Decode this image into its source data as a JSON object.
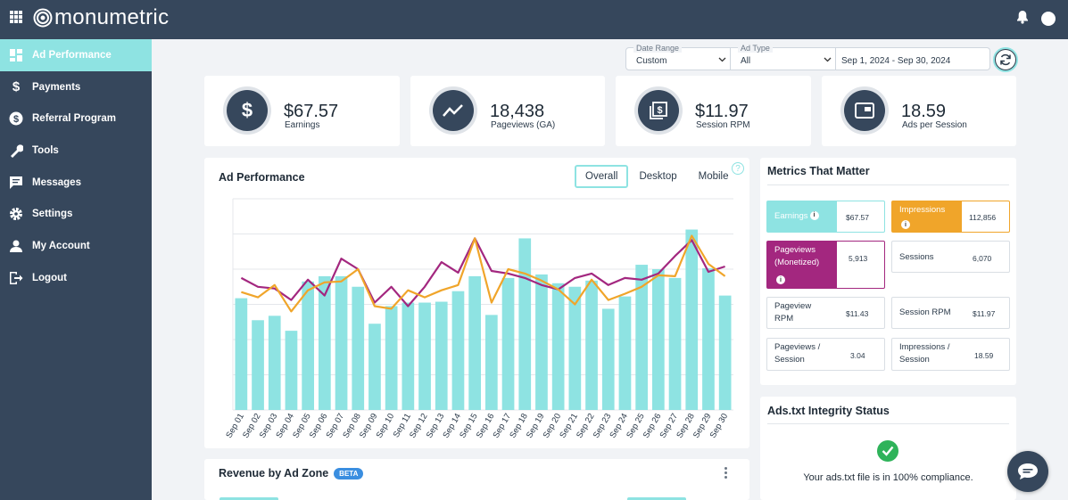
{
  "brand": {
    "name": "monumetric"
  },
  "sidebar": {
    "items": [
      {
        "label": "Ad Performance",
        "icon": "dashboard-icon",
        "active": true
      },
      {
        "label": "Payments",
        "icon": "dollar-icon"
      },
      {
        "label": "Referral Program",
        "icon": "referral-icon"
      },
      {
        "label": "Tools",
        "icon": "wrench-icon"
      },
      {
        "label": "Messages",
        "icon": "message-icon"
      },
      {
        "label": "Settings",
        "icon": "gear-icon"
      },
      {
        "label": "My Account",
        "icon": "user-icon"
      },
      {
        "label": "Logout",
        "icon": "logout-icon"
      }
    ]
  },
  "filters": {
    "date_range": {
      "label": "Date Range",
      "value": "Custom"
    },
    "ad_type": {
      "label": "Ad Type",
      "value": "All"
    },
    "dates": "Sep 1, 2024 - Sep 30, 2024"
  },
  "kpis": [
    {
      "value": "$67.57",
      "label": "Earnings",
      "icon": "dollar-icon"
    },
    {
      "value": "18,438",
      "label": "Pageviews (GA)",
      "icon": "trend-icon"
    },
    {
      "value": "$11.97",
      "label": "Session RPM",
      "icon": "money-stack-icon"
    },
    {
      "value": "18.59",
      "label": "Ads per Session",
      "icon": "ad-window-icon"
    }
  ],
  "ad_performance": {
    "title": "Ad Performance",
    "tabs": [
      "Overall",
      "Desktop",
      "Mobile"
    ],
    "active_tab": "Overall"
  },
  "chart_data": {
    "type": "bar",
    "categories": [
      "Sep 01",
      "Sep 02",
      "Sep 03",
      "Sep 04",
      "Sep 05",
      "Sep 06",
      "Sep 07",
      "Sep 08",
      "Sep 09",
      "Sep 10",
      "Sep 11",
      "Sep 12",
      "Sep 13",
      "Sep 14",
      "Sep 15",
      "Sep 16",
      "Sep 17",
      "Sep 18",
      "Sep 19",
      "Sep 20",
      "Sep 21",
      "Sep 22",
      "Sep 23",
      "Sep 24",
      "Sep 25",
      "Sep 26",
      "Sep 27",
      "Sep 28",
      "Sep 29",
      "Sep 30"
    ],
    "ylim": [
      0,
      240
    ],
    "grid": true,
    "colors": {
      "bars": "#8ee3e2",
      "line1": "#a3277f",
      "line2": "#f0a52a"
    },
    "series": [
      {
        "kind": "bar",
        "values": [
          127,
          102,
          107,
          90,
          146,
          152,
          152,
          140,
          98,
          118,
          122,
          122,
          123,
          135,
          152,
          108,
          150,
          195,
          154,
          144,
          140,
          147,
          115,
          129,
          165,
          160,
          150,
          205,
          161,
          130
        ]
      },
      {
        "kind": "line",
        "values": [
          150,
          140,
          138,
          125,
          148,
          130,
          172,
          160,
          122,
          140,
          118,
          140,
          168,
          156,
          195,
          158,
          155,
          150,
          142,
          137,
          150,
          155,
          142,
          150,
          148,
          155,
          175,
          193,
          157,
          163
        ]
      },
      {
        "kind": "line",
        "values": [
          134,
          128,
          142,
          112,
          136,
          145,
          146,
          160,
          118,
          115,
          136,
          128,
          136,
          142,
          195,
          122,
          160,
          155,
          147,
          137,
          120,
          148,
          125,
          132,
          140,
          153,
          152,
          198,
          166,
          152
        ]
      }
    ]
  },
  "metrics": {
    "title": "Metrics That Matter",
    "earnings": {
      "label": "Earnings",
      "value": "$67.57",
      "color": "#8ee3e2"
    },
    "impressions": {
      "label": "Impressions",
      "value": "112,856",
      "color": "#f0a52a"
    },
    "pageviews_monetized": {
      "label": "Pageviews (Monetized)",
      "value": "5,913",
      "color": "#a3277f"
    },
    "sessions": {
      "label": "Sessions",
      "value": "6,070"
    },
    "pageview_rpm": {
      "label": "Pageview RPM",
      "value": "$11.43"
    },
    "session_rpm": {
      "label": "Session RPM",
      "value": "$11.97"
    },
    "pageviews_per_session": {
      "label": "Pageviews / Session",
      "value": "3.04"
    },
    "impressions_per_session": {
      "label": "Impressions / Session",
      "value": "18.59"
    }
  },
  "ads_txt": {
    "title": "Ads.txt Integrity Status",
    "message": "Your ads.txt file is in 100% compliance."
  },
  "revenue_zone": {
    "title": "Revenue by Ad Zone",
    "badge": "BETA"
  }
}
